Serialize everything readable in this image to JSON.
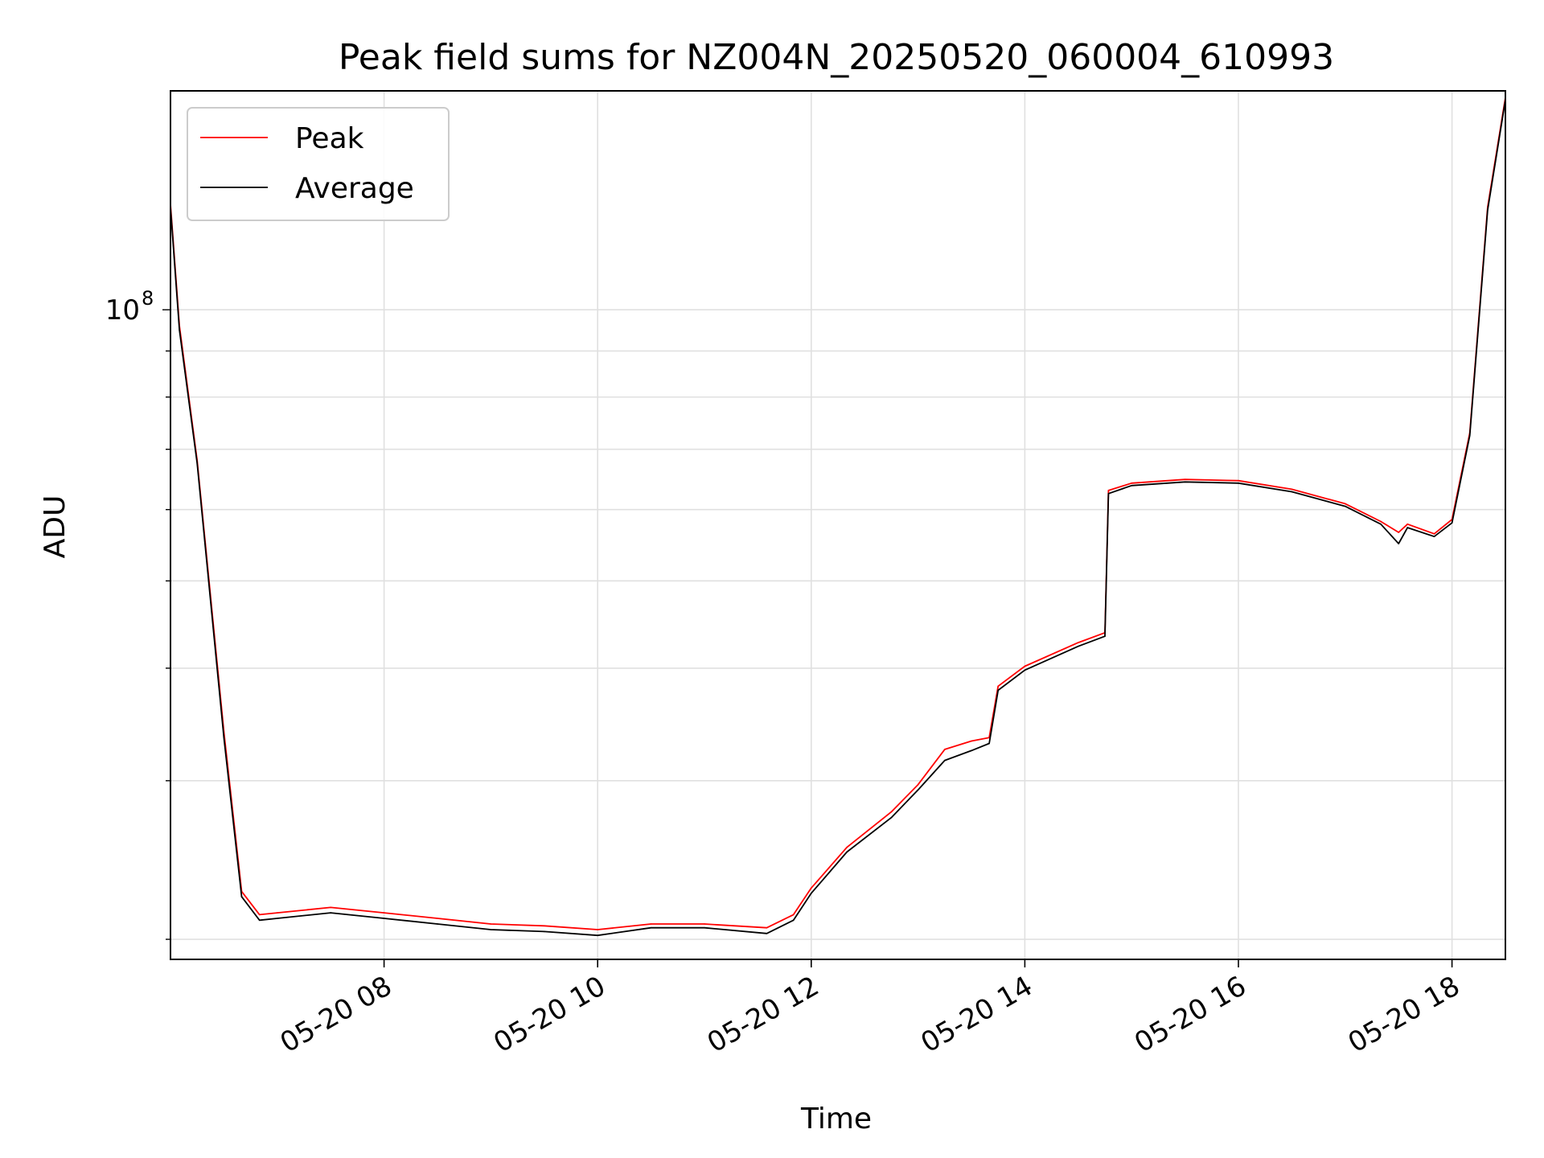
{
  "chart_data": {
    "type": "line",
    "title": "Peak field sums for NZ004N_20250520_060004_610993",
    "xlabel": "Time",
    "ylabel": "ADU",
    "y_scale": "log",
    "xlim": [
      "05-20 06:00",
      "05-20 18:30"
    ],
    "ylim": [
      19000000,
      175000000
    ],
    "x_ticks": [
      "05-20 08",
      "05-20 10",
      "05-20 12",
      "05-20 14",
      "05-20 16",
      "05-20 18"
    ],
    "y_major_ticks": [
      {
        "value": 100000000,
        "mantissa": "10",
        "exponent": "8"
      }
    ],
    "grid": true,
    "legend": {
      "position": "top-left",
      "entries": [
        "Peak",
        "Average"
      ]
    },
    "series": [
      {
        "name": "Peak",
        "color": "#ff0000",
        "x": [
          "05-20 06:00",
          "05-20 06:05",
          "05-20 06:15",
          "05-20 06:30",
          "05-20 06:40",
          "05-20 06:50",
          "05-20 07:00",
          "05-20 07:30",
          "05-20 08:00",
          "05-20 08:30",
          "05-20 09:00",
          "05-20 09:30",
          "05-20 10:00",
          "05-20 10:30",
          "05-20 11:00",
          "05-20 11:35",
          "05-20 11:50",
          "05-20 12:00",
          "05-20 12:20",
          "05-20 12:45",
          "05-20 13:00",
          "05-20 13:15",
          "05-20 13:30",
          "05-20 13:40",
          "05-20 13:45",
          "05-20 14:00",
          "05-20 14:30",
          "05-20 14:45",
          "05-20 14:47",
          "05-20 15:00",
          "05-20 15:30",
          "05-20 16:00",
          "05-20 16:30",
          "05-20 17:00",
          "05-20 17:20",
          "05-20 17:30",
          "05-20 17:35",
          "05-20 17:50",
          "05-20 18:00",
          "05-20 18:10",
          "05-20 18:20",
          "05-20 18:30"
        ],
        "y": [
          131000000,
          96000000,
          68000000,
          34000000,
          22600000,
          21300000,
          21400000,
          21700000,
          21400000,
          21100000,
          20800000,
          20700000,
          20500000,
          20800000,
          20800000,
          20600000,
          21300000,
          22800000,
          25300000,
          27700000,
          29700000,
          32500000,
          33200000,
          33500000,
          38200000,
          40200000,
          42700000,
          43800000,
          63000000,
          64200000,
          64800000,
          64600000,
          63200000,
          60900000,
          58200000,
          56600000,
          57800000,
          56400000,
          58500000,
          73000000,
          130000000,
          172000000
        ]
      },
      {
        "name": "Average",
        "color": "#000000",
        "x": [
          "05-20 06:00",
          "05-20 06:05",
          "05-20 06:15",
          "05-20 06:30",
          "05-20 06:40",
          "05-20 06:50",
          "05-20 07:00",
          "05-20 07:30",
          "05-20 08:00",
          "05-20 08:30",
          "05-20 09:00",
          "05-20 09:30",
          "05-20 10:00",
          "05-20 10:30",
          "05-20 11:00",
          "05-20 11:35",
          "05-20 11:50",
          "05-20 12:00",
          "05-20 12:20",
          "05-20 12:45",
          "05-20 13:00",
          "05-20 13:15",
          "05-20 13:30",
          "05-20 13:40",
          "05-20 13:45",
          "05-20 14:00",
          "05-20 14:30",
          "05-20 14:45",
          "05-20 14:47",
          "05-20 15:00",
          "05-20 15:30",
          "05-20 16:00",
          "05-20 16:30",
          "05-20 17:00",
          "05-20 17:20",
          "05-20 17:30",
          "05-20 17:35",
          "05-20 17:50",
          "05-20 18:00",
          "05-20 18:10",
          "05-20 18:20",
          "05-20 18:30"
        ],
        "y": [
          130000000,
          95000000,
          67500000,
          33500000,
          22300000,
          21000000,
          21100000,
          21400000,
          21100000,
          20800000,
          20500000,
          20400000,
          20200000,
          20600000,
          20600000,
          20300000,
          21000000,
          22500000,
          25000000,
          27300000,
          29300000,
          31600000,
          32400000,
          33000000,
          37800000,
          39800000,
          42300000,
          43400000,
          62500000,
          63800000,
          64400000,
          64200000,
          62800000,
          60500000,
          57800000,
          55000000,
          57300000,
          56000000,
          58000000,
          72500000,
          129000000,
          171000000
        ]
      }
    ]
  }
}
